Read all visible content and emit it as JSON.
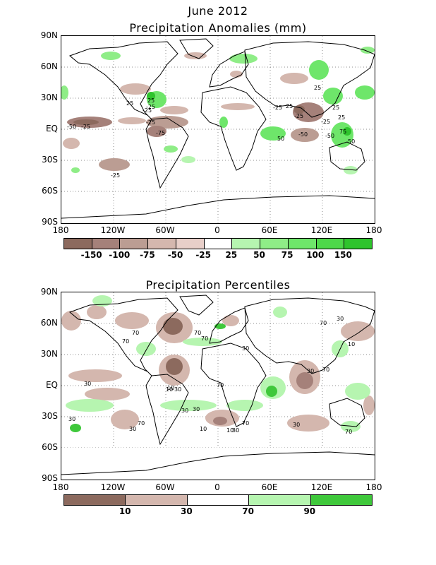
{
  "titles": {
    "main": "June 2012",
    "anomalies": "Precipitation Anomalies (mm)",
    "percentiles": "Precipitation Percentiles"
  },
  "axes": {
    "y_ticks": [
      "90N",
      "60N",
      "30N",
      "EQ",
      "30S",
      "60S",
      "90S"
    ],
    "x_ticks": [
      "180",
      "120W",
      "60W",
      "0",
      "60E",
      "120E",
      "180"
    ]
  },
  "anomaly_colorbar": {
    "colors": [
      "#8c6a5e",
      "#a5817a",
      "#bb9d93",
      "#d4b7ae",
      "#e8cfc9",
      "#ffffff",
      "#b6f5b0",
      "#8fed87",
      "#6ee66a",
      "#4ed84a",
      "#2fc42d"
    ],
    "labels": [
      "-150",
      "-100",
      "-75",
      "-50",
      "-25",
      "25",
      "50",
      "75",
      "100",
      "150"
    ]
  },
  "percentile_colorbar": {
    "colors": [
      "#8c6a5e",
      "#d4b7ae",
      "#ffffff",
      "#b6f5b0",
      "#3fc83b"
    ],
    "labels": [
      "10",
      "30",
      "70",
      "90"
    ]
  },
  "anomaly_contour_labels": [
    "25",
    "-25",
    "25",
    "-25",
    "-25",
    "-50",
    "-25",
    "-75",
    "-25",
    "-25",
    "25",
    "-25",
    "25",
    "-50",
    "-25",
    "25",
    "75",
    "50",
    "-50",
    "25",
    "50"
  ],
  "percentile_contour_labels": [
    "70",
    "70",
    "70",
    "30",
    "70",
    "30",
    "10",
    "70",
    "70",
    "30",
    "30",
    "10",
    "30",
    "30",
    "70",
    "30",
    "10",
    "70",
    "30",
    "30",
    "10",
    "70",
    "30",
    "70",
    "10",
    "30"
  ]
}
